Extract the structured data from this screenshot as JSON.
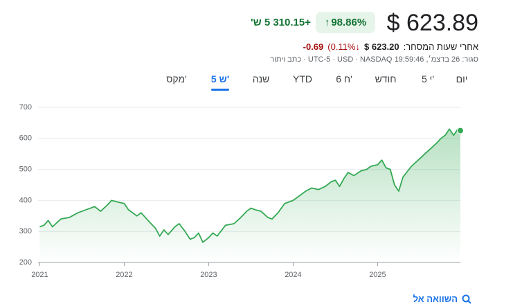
{
  "price": "$ 623.89",
  "change_percent": "98.86%",
  "change_abs": "+310.15 5 ש'",
  "after_hours": {
    "label": "אחרי שעות המסחר:",
    "price": "$ 623.20",
    "percent": "(0.11%",
    "abs": "-0.69"
  },
  "closed_line": "סגור: 26 בדצמ׳, 19:59:46 UTC-5 · USD · NASDAQ · כתב ויתור",
  "tabs": [
    "יום",
    "5 י'",
    "חודש",
    "6 ח'",
    "YTD",
    "שנה",
    "5 ש'",
    "מקס'"
  ],
  "selected_tab": 6,
  "compare": "השוואה אל",
  "chart_data": {
    "type": "line",
    "x": [
      2021.0,
      2021.05,
      2021.1,
      2021.15,
      2021.25,
      2021.35,
      2021.45,
      2021.55,
      2021.65,
      2021.72,
      2021.8,
      2021.85,
      2021.92,
      2022.0,
      2022.05,
      2022.15,
      2022.2,
      2022.3,
      2022.37,
      2022.42,
      2022.47,
      2022.52,
      2022.6,
      2022.65,
      2022.72,
      2022.78,
      2022.83,
      2022.88,
      2022.93,
      2023.0,
      2023.05,
      2023.1,
      2023.2,
      2023.3,
      2023.38,
      2023.45,
      2023.5,
      2023.55,
      2023.62,
      2023.7,
      2023.75,
      2023.82,
      2023.9,
      2024.0,
      2024.1,
      2024.15,
      2024.22,
      2024.3,
      2024.38,
      2024.45,
      2024.5,
      2024.55,
      2024.6,
      2024.65,
      2024.72,
      2024.8,
      2024.87,
      2024.92,
      2025.0,
      2025.05,
      2025.1,
      2025.15,
      2025.2,
      2025.25,
      2025.3,
      2025.4,
      2025.5,
      2025.6,
      2025.7,
      2025.75,
      2025.8,
      2025.85,
      2025.9,
      2025.95,
      2025.98
    ],
    "series": [
      {
        "color": "#34a853",
        "values": [
          315,
          320,
          335,
          315,
          340,
          345,
          360,
          370,
          380,
          365,
          385,
          400,
          395,
          390,
          370,
          350,
          360,
          330,
          310,
          285,
          305,
          290,
          315,
          325,
          300,
          275,
          280,
          295,
          265,
          280,
          295,
          285,
          320,
          325,
          345,
          365,
          375,
          370,
          365,
          345,
          340,
          360,
          390,
          400,
          420,
          430,
          440,
          435,
          445,
          460,
          465,
          445,
          470,
          490,
          480,
          495,
          500,
          510,
          515,
          530,
          505,
          500,
          450,
          430,
          475,
          510,
          535,
          560,
          585,
          600,
          610,
          630,
          610,
          630,
          625
        ]
      }
    ],
    "xlim": [
      2020.98,
      2025.98
    ],
    "xticks": [
      2021,
      2022,
      2023,
      2024,
      2025
    ],
    "ylim": [
      200,
      700
    ],
    "yticks": [
      200,
      300,
      400,
      500,
      600,
      700
    ],
    "grid": true
  }
}
